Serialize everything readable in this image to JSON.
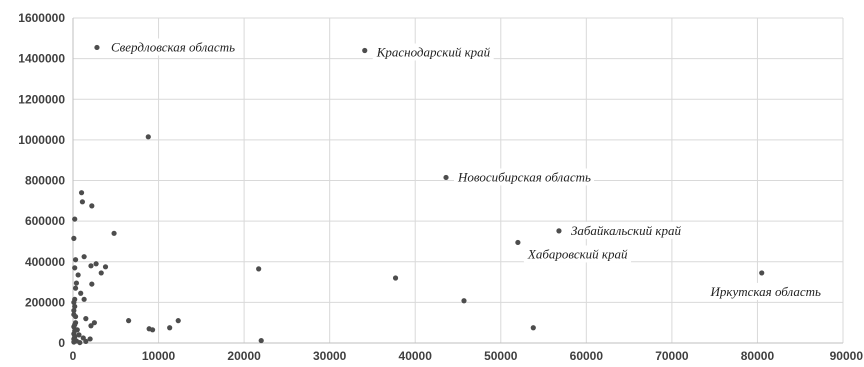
{
  "chart_data": {
    "type": "scatter",
    "title": "",
    "xlabel": "",
    "ylabel": "",
    "xlim": [
      0,
      90000
    ],
    "ylim": [
      0,
      1600000
    ],
    "grid": true,
    "x_ticks": [
      0,
      10000,
      20000,
      30000,
      40000,
      50000,
      60000,
      70000,
      80000,
      90000
    ],
    "y_ticks": [
      0,
      200000,
      400000,
      600000,
      800000,
      1000000,
      1200000,
      1400000,
      1600000
    ],
    "x_tick_labels": [
      "0",
      "10000",
      "20000",
      "30000",
      "40000",
      "50000",
      "60000",
      "70000",
      "80000",
      "90000"
    ],
    "y_tick_labels": [
      "0",
      "200000",
      "400000",
      "600000",
      "800000",
      "1000000",
      "1200000",
      "1400000",
      "1600000"
    ],
    "point_color": "#4d4d4d",
    "annotations": [
      {
        "text": "Свердловская область",
        "x": 2800,
        "y": 1455000
      },
      {
        "text": "Краснодарский край",
        "x": 34100,
        "y": 1440000
      },
      {
        "text": "Новосибирская область",
        "x": 43600,
        "y": 815000
      },
      {
        "text": "Забайкальский край",
        "x": 56800,
        "y": 552000
      },
      {
        "text": "Хабаровский край",
        "x": 52000,
        "y": 495000
      },
      {
        "text": "Иркутская область",
        "x": 80500,
        "y": 345000
      }
    ],
    "points": [
      [
        2800,
        1455000
      ],
      [
        34100,
        1440000
      ],
      [
        8800,
        1015000
      ],
      [
        43600,
        815000
      ],
      [
        56800,
        552000
      ],
      [
        52000,
        495000
      ],
      [
        80500,
        345000
      ],
      [
        37700,
        320000
      ],
      [
        21700,
        365000
      ],
      [
        45700,
        208000
      ],
      [
        53800,
        75000
      ],
      [
        22000,
        12000
      ],
      [
        1000,
        740000
      ],
      [
        1100,
        695000
      ],
      [
        2200,
        675000
      ],
      [
        200,
        610000
      ],
      [
        4800,
        540000
      ],
      [
        100,
        515000
      ],
      [
        1300,
        425000
      ],
      [
        300,
        410000
      ],
      [
        3800,
        375000
      ],
      [
        2700,
        390000
      ],
      [
        2100,
        380000
      ],
      [
        3300,
        345000
      ],
      [
        200,
        370000
      ],
      [
        600,
        335000
      ],
      [
        2200,
        290000
      ],
      [
        400,
        295000
      ],
      [
        300,
        270000
      ],
      [
        900,
        245000
      ],
      [
        200,
        215000
      ],
      [
        1300,
        215000
      ],
      [
        100,
        200000
      ],
      [
        200,
        180000
      ],
      [
        100,
        160000
      ],
      [
        100,
        140000
      ],
      [
        1500,
        120000
      ],
      [
        2500,
        100000
      ],
      [
        6500,
        110000
      ],
      [
        12300,
        110000
      ],
      [
        11300,
        75000
      ],
      [
        8900,
        70000
      ],
      [
        9300,
        65000
      ],
      [
        2100,
        85000
      ],
      [
        300,
        100000
      ],
      [
        100,
        80000
      ],
      [
        200,
        60000
      ],
      [
        100,
        45000
      ],
      [
        200,
        30000
      ],
      [
        1200,
        25000
      ],
      [
        100,
        20000
      ],
      [
        2000,
        20000
      ],
      [
        400,
        10000
      ],
      [
        100,
        5000
      ],
      [
        800,
        2000
      ],
      [
        1500,
        8000
      ],
      [
        300,
        130000
      ],
      [
        700,
        40000
      ],
      [
        200,
        90000
      ],
      [
        500,
        65000
      ]
    ]
  }
}
